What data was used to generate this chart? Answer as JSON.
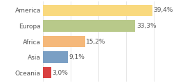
{
  "categories": [
    "America",
    "Europa",
    "Africa",
    "Asia",
    "Oceania"
  ],
  "values": [
    39.4,
    33.3,
    15.2,
    9.1,
    3.0
  ],
  "labels": [
    "39,4%",
    "33,3%",
    "15,2%",
    "9,1%",
    "3,0%"
  ],
  "colors": [
    "#f9d97e",
    "#b8c98a",
    "#f5b87a",
    "#7a9fc4",
    "#d94040"
  ],
  "background_color": "#ffffff",
  "xlim": [
    0,
    46
  ],
  "bar_height": 0.72,
  "label_fontsize": 6.5,
  "category_fontsize": 6.5,
  "grid_ticks": [
    0,
    10,
    20,
    30,
    40
  ],
  "grid_color": "#dddddd",
  "text_color": "#555555"
}
